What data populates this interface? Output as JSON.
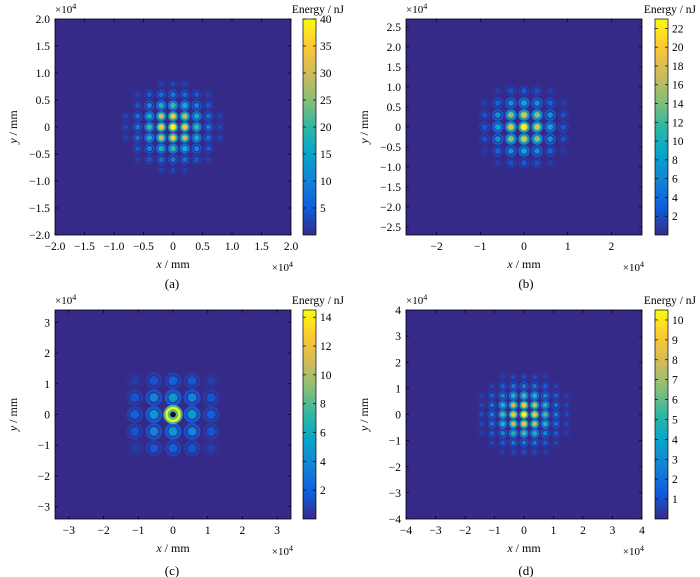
{
  "chart_data": [
    {
      "type": "heatmap",
      "caption": "(a)",
      "xlabel_var": "x",
      "xlabel_unit": " / mm",
      "ylabel_var": "y",
      "ylabel_unit": " / mm",
      "x_exponent": "×10",
      "x_exponent_power": "4",
      "y_exponent": "×10",
      "y_exponent_power": "4",
      "xlim": [
        -2.0,
        2.0
      ],
      "ylim": [
        -2.0,
        2.0
      ],
      "xticks": [
        -2.0,
        -1.5,
        -1.0,
        -0.5,
        0,
        0.5,
        1.0,
        1.5,
        2.0
      ],
      "xtick_labels": [
        "−2.0",
        "−1.5",
        "−1.0",
        "−0.5",
        "0",
        "0.5",
        "1.0",
        "1.5",
        "2.0"
      ],
      "yticks": [
        2.0,
        1.5,
        1.0,
        0.5,
        0,
        -0.5,
        -1.0,
        -1.5,
        -2.0
      ],
      "ytick_labels": [
        "2.0",
        "1.5",
        "1.0",
        "0.5",
        "0",
        "−0.5",
        "−1.0",
        "−1.5",
        "−2.0"
      ],
      "colorbar_label": "Energy / nJ",
      "colorbar_range": [
        0,
        40
      ],
      "colorbar_ticks": [
        5,
        10,
        15,
        20,
        25,
        30,
        35,
        40
      ],
      "pattern": {
        "spacing": 0.2,
        "envelope_radius": 0.8,
        "peak": 40,
        "center_type": "peak"
      }
    },
    {
      "type": "heatmap",
      "caption": "(b)",
      "xlabel_var": "x",
      "xlabel_unit": " / mm",
      "ylabel_var": "y",
      "ylabel_unit": " / mm",
      "x_exponent": "×10",
      "x_exponent_power": "4",
      "y_exponent": "×10",
      "y_exponent_power": "4",
      "xlim": [
        -2.7,
        2.7
      ],
      "ylim": [
        -2.7,
        2.7
      ],
      "xticks": [
        -2,
        -1,
        0,
        1,
        2
      ],
      "xtick_labels": [
        "−2",
        "−1",
        "0",
        "1",
        "2"
      ],
      "yticks": [
        2.5,
        2.0,
        1.5,
        1.0,
        0.5,
        0,
        -0.5,
        -1.0,
        -1.5,
        -2.0,
        -2.5
      ],
      "ytick_labels": [
        "2.5",
        "2.0",
        "1.5",
        "1.0",
        "0.5",
        "0",
        "−0.5",
        "−1.0",
        "−1.5",
        "−2.0",
        "−2.5"
      ],
      "colorbar_label": "Energy / nJ",
      "colorbar_range": [
        0,
        23
      ],
      "colorbar_ticks": [
        2,
        4,
        6,
        8,
        10,
        12,
        14,
        16,
        18,
        20,
        22
      ],
      "pattern": {
        "spacing": 0.3,
        "envelope_radius": 1.0,
        "peak": 23,
        "center_type": "peak"
      }
    },
    {
      "type": "heatmap",
      "caption": "(c)",
      "xlabel_var": "x",
      "xlabel_unit": " / mm",
      "ylabel_var": "y",
      "ylabel_unit": " / mm",
      "x_exponent": "×10",
      "x_exponent_power": "4",
      "y_exponent": "×10",
      "y_exponent_power": "4",
      "xlim": [
        -3.4,
        3.4
      ],
      "ylim": [
        -3.4,
        3.4
      ],
      "xticks": [
        -3,
        -2,
        -1,
        0,
        1,
        2,
        3
      ],
      "xtick_labels": [
        "−3",
        "−2",
        "−1",
        "0",
        "1",
        "2",
        "3"
      ],
      "yticks": [
        3,
        2,
        1,
        0,
        -1,
        -2,
        -3
      ],
      "ytick_labels": [
        "3",
        "2",
        "1",
        "0",
        "−1",
        "−2",
        "−3"
      ],
      "colorbar_label": "Energy / nJ",
      "colorbar_range": [
        0,
        14.5
      ],
      "colorbar_ticks": [
        2,
        4,
        6,
        8,
        10,
        12,
        14
      ],
      "pattern": {
        "spacing": 0.55,
        "envelope_radius": 1.3,
        "peak": 14.5,
        "center_type": "ring"
      }
    },
    {
      "type": "heatmap",
      "caption": "(d)",
      "xlabel_var": "x",
      "xlabel_unit": " / mm",
      "ylabel_var": "y",
      "ylabel_unit": " / mm",
      "x_exponent": "×10",
      "x_exponent_power": "4",
      "y_exponent": "×10",
      "y_exponent_power": "4",
      "xlim": [
        -4,
        4
      ],
      "ylim": [
        -4,
        4
      ],
      "xticks": [
        -4,
        -3,
        -2,
        -1,
        0,
        1,
        2,
        3,
        4
      ],
      "xtick_labels": [
        "−4",
        "−3",
        "−2",
        "−1",
        "0",
        "1",
        "2",
        "3",
        "4"
      ],
      "yticks": [
        4,
        3,
        2,
        1,
        0,
        -1,
        -2,
        -3,
        -4
      ],
      "ytick_labels": [
        "4",
        "3",
        "2",
        "1",
        "0",
        "−1",
        "−2",
        "−3",
        "−4"
      ],
      "colorbar_label": "Energy / nJ",
      "colorbar_range": [
        0,
        10.5
      ],
      "colorbar_ticks": [
        1,
        2,
        3,
        4,
        5,
        6,
        7,
        8,
        9,
        10
      ],
      "pattern": {
        "spacing": 0.36,
        "envelope_radius": 1.5,
        "peak": 10.5,
        "center_type": "peak"
      }
    }
  ]
}
